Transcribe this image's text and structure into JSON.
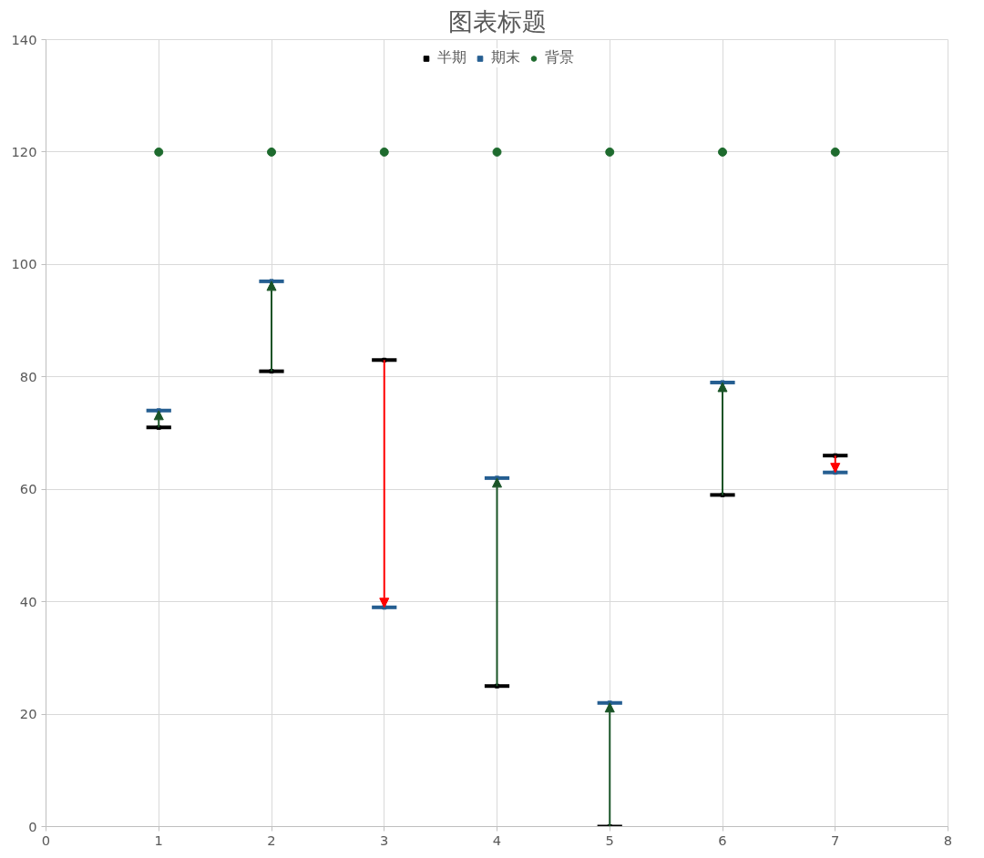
{
  "chart_data": {
    "type": "scatter",
    "title": "图表标题",
    "x": [
      1,
      2,
      3,
      4,
      5,
      6,
      7
    ],
    "series": [
      {
        "name": "半期",
        "color": "#000000",
        "marker": "square",
        "xerrors": [
          0.11,
          0.11,
          0.11,
          0.11,
          0.11,
          0.11,
          0.11
        ],
        "values": [
          71,
          81,
          83,
          25,
          0,
          59,
          66
        ]
      },
      {
        "name": "期末",
        "color": "#255e91",
        "marker": "square",
        "xerrors": [
          0.11,
          0.11,
          0.11,
          0.11,
          0.11,
          0.11,
          0.11
        ],
        "values": [
          74,
          97,
          39,
          62,
          22,
          79,
          63
        ]
      },
      {
        "name": "背景",
        "color": "#1e6b2e",
        "marker": "circle",
        "values": [
          120,
          120,
          120,
          120,
          120,
          120,
          120
        ]
      }
    ],
    "colors": [
      "#1a5427",
      "#1a5427",
      "#ff0000",
      "#1a5427",
      "#1a5427",
      "#1a5427",
      "#ff0000"
    ],
    "xlim": [
      0,
      8
    ],
    "xticks": [
      0,
      1,
      2,
      3,
      4,
      5,
      6,
      7,
      8
    ],
    "ylim": [
      0,
      140
    ],
    "yticks": [
      0,
      20,
      40,
      60,
      80,
      100,
      120,
      140
    ],
    "grid": true,
    "legend": "top"
  }
}
